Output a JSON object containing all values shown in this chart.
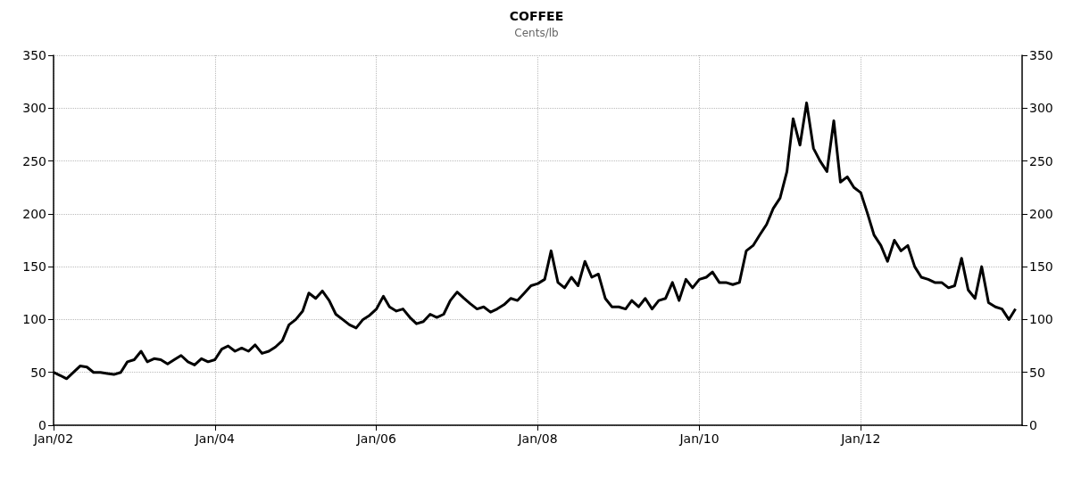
{
  "chart_data": {
    "type": "line",
    "title": "COFFEE",
    "subtitle": "Cents/lb",
    "x": [
      "2002-01",
      "2002-02",
      "2002-03",
      "2002-04",
      "2002-05",
      "2002-06",
      "2002-07",
      "2002-08",
      "2002-09",
      "2002-10",
      "2002-11",
      "2002-12",
      "2003-01",
      "2003-02",
      "2003-03",
      "2003-04",
      "2003-05",
      "2003-06",
      "2003-07",
      "2003-08",
      "2003-09",
      "2003-10",
      "2003-11",
      "2003-12",
      "2004-01",
      "2004-02",
      "2004-03",
      "2004-04",
      "2004-05",
      "2004-06",
      "2004-07",
      "2004-08",
      "2004-09",
      "2004-10",
      "2004-11",
      "2004-12",
      "2005-01",
      "2005-02",
      "2005-03",
      "2005-04",
      "2005-05",
      "2005-06",
      "2005-07",
      "2005-08",
      "2005-09",
      "2005-10",
      "2005-11",
      "2005-12",
      "2006-01",
      "2006-02",
      "2006-03",
      "2006-04",
      "2006-05",
      "2006-06",
      "2006-07",
      "2006-08",
      "2006-09",
      "2006-10",
      "2006-11",
      "2006-12",
      "2007-01",
      "2007-02",
      "2007-03",
      "2007-04",
      "2007-05",
      "2007-06",
      "2007-07",
      "2007-08",
      "2007-09",
      "2007-10",
      "2007-11",
      "2007-12",
      "2008-01",
      "2008-02",
      "2008-03",
      "2008-04",
      "2008-05",
      "2008-06",
      "2008-07",
      "2008-08",
      "2008-09",
      "2008-10",
      "2008-11",
      "2008-12",
      "2009-01",
      "2009-02",
      "2009-03",
      "2009-04",
      "2009-05",
      "2009-06",
      "2009-07",
      "2009-08",
      "2009-09",
      "2009-10",
      "2009-11",
      "2009-12",
      "2010-01",
      "2010-02",
      "2010-03",
      "2010-04",
      "2010-05",
      "2010-06",
      "2010-07",
      "2010-08",
      "2010-09",
      "2010-10",
      "2010-11",
      "2010-12",
      "2011-01",
      "2011-02",
      "2011-03",
      "2011-04",
      "2011-05",
      "2011-06",
      "2011-07",
      "2011-08",
      "2011-09",
      "2011-10",
      "2011-11",
      "2011-12",
      "2012-01",
      "2012-02",
      "2012-03",
      "2012-04",
      "2012-05",
      "2012-06",
      "2012-07",
      "2012-08",
      "2012-09",
      "2012-10",
      "2012-11",
      "2012-12",
      "2013-01",
      "2013-02",
      "2013-03",
      "2013-04",
      "2013-05",
      "2013-06",
      "2013-07",
      "2013-08",
      "2013-09",
      "2013-10",
      "2013-11",
      "2013-12"
    ],
    "series": [
      {
        "color": "#000000",
        "values": [
          50,
          47,
          44,
          50,
          56,
          55,
          50,
          50,
          49,
          48,
          50,
          60,
          62,
          70,
          60,
          63,
          62,
          58,
          62,
          66,
          60,
          57,
          63,
          60,
          62,
          72,
          75,
          70,
          73,
          70,
          76,
          68,
          70,
          74,
          80,
          95,
          100,
          108,
          125,
          120,
          127,
          118,
          105,
          100,
          95,
          92,
          100,
          104,
          110,
          122,
          112,
          108,
          110,
          102,
          96,
          98,
          105,
          102,
          105,
          118,
          126,
          120,
          115,
          110,
          112,
          107,
          110,
          114,
          120,
          118,
          125,
          132,
          134,
          138,
          165,
          135,
          130,
          140,
          132,
          155,
          140,
          143,
          120,
          112,
          112,
          110,
          118,
          112,
          120,
          110,
          118,
          120,
          135,
          118,
          138,
          130,
          138,
          140,
          145,
          135,
          135,
          133,
          135,
          165,
          170,
          180,
          190,
          205,
          215,
          240,
          290,
          265,
          305,
          262,
          250,
          240,
          288,
          230,
          235,
          225,
          220,
          200,
          180,
          170,
          155,
          175,
          165,
          170,
          150,
          140,
          138,
          135,
          135,
          130,
          132,
          158,
          128,
          120,
          150,
          116,
          112,
          110,
          100,
          110
        ]
      }
    ],
    "xlim": [
      "2002-01-01",
      "2013-12-31"
    ],
    "xticks": [
      {
        "value": "2002-01",
        "label": "Jan/02"
      },
      {
        "value": "2004-01",
        "label": "Jan/04"
      },
      {
        "value": "2006-01",
        "label": "Jan/06"
      },
      {
        "value": "2008-01",
        "label": "Jan/08"
      },
      {
        "value": "2010-01",
        "label": "Jan/10"
      },
      {
        "value": "2012-01",
        "label": "Jan/12"
      }
    ],
    "ylim": [
      0,
      350
    ],
    "yticks": [
      0,
      50,
      100,
      150,
      200,
      250,
      300,
      350
    ],
    "y2lim": [
      0,
      350
    ],
    "y2ticks": [
      0,
      50,
      100,
      150,
      200,
      250,
      300,
      350
    ],
    "grid": true,
    "line_style": "solid"
  }
}
